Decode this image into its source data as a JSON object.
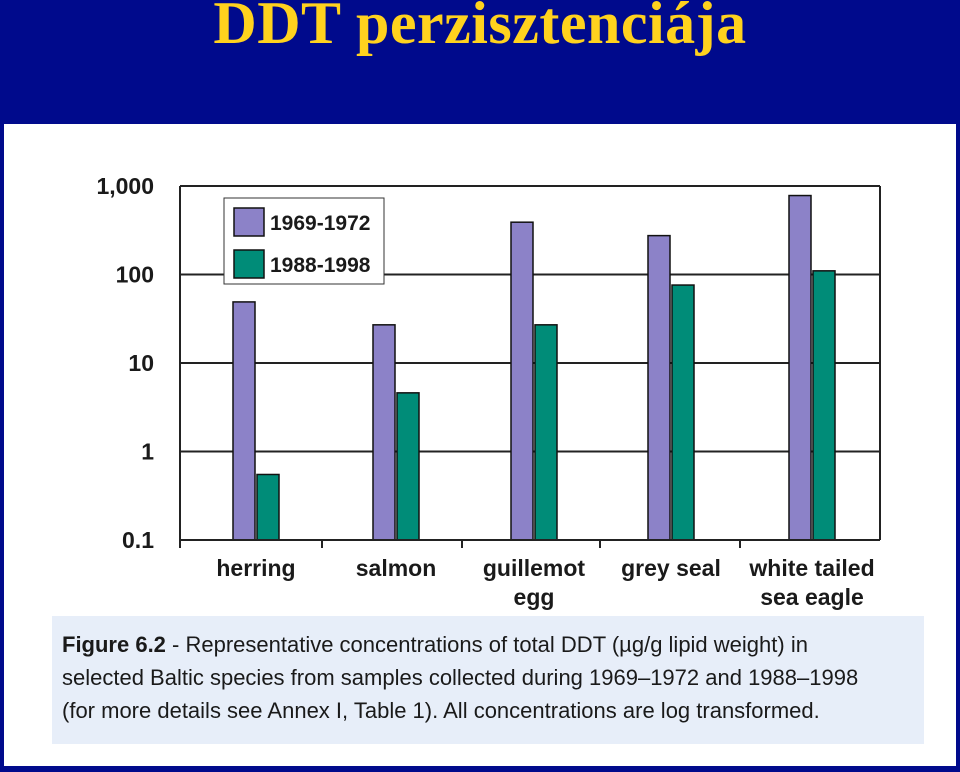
{
  "slide": {
    "title": "DDT perzisztenciája"
  },
  "chart_data": {
    "type": "bar",
    "scale": "log",
    "ylim": [
      0.1,
      1000
    ],
    "y_ticks": [
      {
        "value": 0.1,
        "label": "0.1"
      },
      {
        "value": 1,
        "label": "1"
      },
      {
        "value": 10,
        "label": "10"
      },
      {
        "value": 100,
        "label": "100"
      },
      {
        "value": 1000,
        "label": "1,000"
      }
    ],
    "grid": true,
    "legend_position": "top-left",
    "categories": [
      {
        "lines": [
          "herring"
        ]
      },
      {
        "lines": [
          "salmon"
        ]
      },
      {
        "lines": [
          "guillemot",
          "egg"
        ]
      },
      {
        "lines": [
          "grey seal"
        ]
      },
      {
        "lines": [
          "white tailed",
          "sea eagle"
        ]
      }
    ],
    "series": [
      {
        "name": "1969-1972",
        "color": "#8c82c8",
        "values": [
          49,
          27,
          390,
          275,
          780
        ]
      },
      {
        "name": "1988-1998",
        "color": "#008c78",
        "values": [
          0.55,
          4.6,
          27,
          76,
          110
        ]
      }
    ]
  },
  "caption": {
    "figure_label": "Figure 6.2",
    "lines": [
      " - Representative concentrations of total DDT (µg/g lipid weight) in",
      "selected Baltic species from samples collected during 1969–1972 and 1988–1998",
      "(for more details see Annex I, Table 1). All concentrations are log transformed."
    ]
  }
}
